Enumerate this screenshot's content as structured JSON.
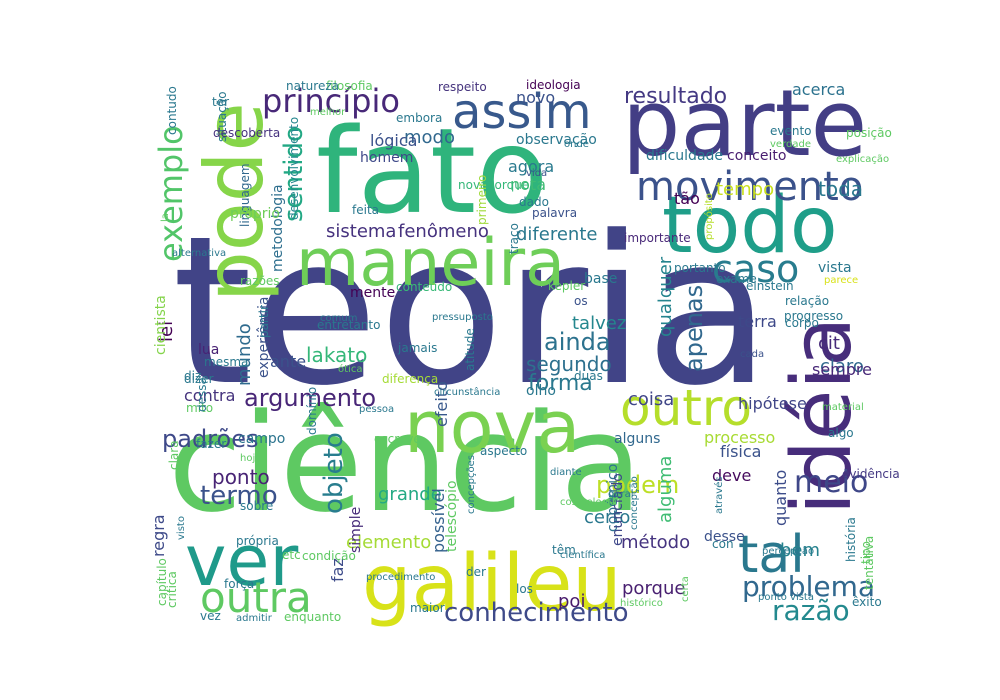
{
  "wordcloud": {
    "words": [
      {
        "text": "teoria",
        "color": "#414487"
      },
      {
        "text": "ciência",
        "color": "#5ec962"
      },
      {
        "text": "fato",
        "color": "#2fb47c"
      },
      {
        "text": "parte",
        "color": "#433e85"
      },
      {
        "text": "idéia",
        "color": "#472d7b"
      },
      {
        "text": "galileu",
        "color": "#d8e219"
      },
      {
        "text": "nova",
        "color": "#7ad151"
      },
      {
        "text": "todo",
        "color": "#1f9e89"
      },
      {
        "text": "maneira",
        "color": "#6ece58"
      },
      {
        "text": "pode",
        "color": "#86d549"
      },
      {
        "text": "ver",
        "color": "#1f9a8a"
      },
      {
        "text": "assim",
        "color": "#38598c"
      },
      {
        "text": "movimento",
        "color": "#3b528b"
      },
      {
        "text": "outro",
        "color": "#b5de2b"
      },
      {
        "text": "outra",
        "color": "#5ec962"
      },
      {
        "text": "caso",
        "color": "#287c8e"
      },
      {
        "text": "exemplo",
        "color": "#52c569"
      },
      {
        "text": "tal",
        "color": "#2a788e"
      },
      {
        "text": "princípio",
        "color": "#482878"
      },
      {
        "text": "conhecimento",
        "color": "#3e4a89"
      },
      {
        "text": "problema",
        "color": "#31688e"
      },
      {
        "text": "argumento",
        "color": "#482677"
      },
      {
        "text": "termo",
        "color": "#3b528b"
      },
      {
        "text": "padrões",
        "color": "#3e4989"
      },
      {
        "text": "objeto",
        "color": "#287d8e"
      },
      {
        "text": "razão",
        "color": "#23898e"
      },
      {
        "text": "sentido",
        "color": "#22a884"
      },
      {
        "text": "resultado",
        "color": "#443983"
      },
      {
        "text": "ainda",
        "color": "#2c728e"
      },
      {
        "text": "apenas",
        "color": "#31688e"
      },
      {
        "text": "podem",
        "color": "#bddf26"
      },
      {
        "text": "meio",
        "color": "#3f4788"
      },
      {
        "text": "forma",
        "color": "#2a788e"
      },
      {
        "text": "tempo",
        "color": "#cae11f"
      },
      {
        "text": "segundo",
        "color": "#2d708e"
      },
      {
        "text": "lakato",
        "color": "#35b779"
      },
      {
        "text": "talvez",
        "color": "#24878e"
      },
      {
        "text": "elemento",
        "color": "#a5db36"
      },
      {
        "text": "qualquer",
        "color": "#25848e"
      },
      {
        "text": "método",
        "color": "#463480"
      },
      {
        "text": "porque",
        "color": "#481f70"
      },
      {
        "text": "modo",
        "color": "#31688e"
      },
      {
        "text": "toda",
        "color": "#2a788e"
      },
      {
        "text": "diferente",
        "color": "#2a788e"
      },
      {
        "text": "sistema",
        "color": "#46327e"
      },
      {
        "text": "fenômeno",
        "color": "#46327e"
      },
      {
        "text": "regra",
        "color": "#3e4a89"
      },
      {
        "text": "ponto",
        "color": "#482475"
      },
      {
        "text": "coisa",
        "color": "#404688"
      },
      {
        "text": "grande",
        "color": "#23a983"
      },
      {
        "text": "alguma",
        "color": "#3fbc73"
      },
      {
        "text": "certo",
        "color": "#2a788e"
      },
      {
        "text": "processo",
        "color": "#a8db34"
      },
      {
        "text": "quanto",
        "color": "#3d4d8a"
      },
      {
        "text": "mundo",
        "color": "#2f6b8e"
      },
      {
        "text": "terra",
        "color": "#3e4989"
      },
      {
        "text": "cit",
        "color": "#472a7a"
      },
      {
        "text": "claro",
        "color": "#31688e"
      },
      {
        "text": "sempre",
        "color": "#482878"
      },
      {
        "text": "novo",
        "color": "#3b528b"
      },
      {
        "text": "acerca",
        "color": "#2c728e"
      },
      {
        "text": "hipótese",
        "color": "#404688"
      },
      {
        "text": "física",
        "color": "#3b528b"
      },
      {
        "text": "deve",
        "color": "#460a5d"
      },
      {
        "text": "bem",
        "color": "#26828e"
      },
      {
        "text": "lei",
        "color": "#440154"
      },
      {
        "text": "contra",
        "color": "#45337d"
      },
      {
        "text": "ante",
        "color": "#3b528b"
      },
      {
        "text": "nota",
        "color": "#3fbc73"
      },
      {
        "text": "agora",
        "color": "#297a8e"
      },
      {
        "text": "lógica",
        "color": "#3b528b"
      },
      {
        "text": "tão",
        "color": "#440154"
      },
      {
        "text": "observação",
        "color": "#2a788e"
      },
      {
        "text": "dificuldade",
        "color": "#2a788e"
      },
      {
        "text": "conceito",
        "color": "#481d6f"
      },
      {
        "text": "telescópio",
        "color": "#5ec962"
      },
      {
        "text": "possível",
        "color": "#34618d"
      },
      {
        "text": "copérnico",
        "color": "#2c728e"
      },
      {
        "text": "simple",
        "color": "#472c7a"
      },
      {
        "text": "faz",
        "color": "#3e4c8a"
      },
      {
        "text": "poi",
        "color": "#481a6c"
      },
      {
        "text": "enunciado",
        "color": "#3f4889"
      },
      {
        "text": "desse",
        "color": "#3b528b"
      },
      {
        "text": "campo",
        "color": "#2b748e"
      },
      {
        "text": "efeito",
        "color": "#38588c"
      },
      {
        "text": "alguns",
        "color": "#31688e"
      },
      {
        "text": "cientista",
        "color": "#84d44b"
      },
      {
        "text": "experiência",
        "color": "#3b528b"
      },
      {
        "text": "lua",
        "color": "#482173"
      },
      {
        "text": "mente",
        "color": "#440154"
      },
      {
        "text": "conteúdo",
        "color": "#38b977"
      },
      {
        "text": "metodologia",
        "color": "#2e6f8e"
      },
      {
        "text": "desenvolvimento",
        "color": "#24868e"
      },
      {
        "text": "linguagem",
        "color": "#31688e"
      },
      {
        "text": "próprio",
        "color": "#6ece58"
      },
      {
        "text": "situação",
        "color": "#2a788e"
      },
      {
        "text": "descoberta",
        "color": "#46327e"
      },
      {
        "text": "respeito",
        "color": "#45337d"
      },
      {
        "text": "ideologia",
        "color": "#440154"
      },
      {
        "text": "homem",
        "color": "#3e4989"
      },
      {
        "text": "embora",
        "color": "#2a788e"
      },
      {
        "text": "nova iorque",
        "color": "#35b779"
      },
      {
        "text": "primeiro",
        "color": "#9fda3a"
      },
      {
        "text": "vida",
        "color": "#3b528b"
      },
      {
        "text": "dado",
        "color": "#2a788e"
      },
      {
        "text": "palavra",
        "color": "#3b528b"
      },
      {
        "text": "traço",
        "color": "#2a788e"
      },
      {
        "text": "propósito",
        "color": "#b5de2b"
      },
      {
        "text": "importante",
        "color": "#482878"
      },
      {
        "text": "portanto",
        "color": "#2a788e"
      },
      {
        "text": "exame",
        "color": "#2a788e"
      },
      {
        "text": "vista",
        "color": "#2a788e"
      },
      {
        "text": "parece",
        "color": "#d8e219"
      },
      {
        "text": "einstein",
        "color": "#2a788e"
      },
      {
        "text": "relação",
        "color": "#2a788e"
      },
      {
        "text": "corpo",
        "color": "#2a788e"
      },
      {
        "text": "progresso",
        "color": "#2a788e"
      },
      {
        "text": "cada",
        "color": "#3b528b"
      },
      {
        "text": "algo",
        "color": "#2a788e"
      },
      {
        "text": "evidência",
        "color": "#443983"
      },
      {
        "text": "tipo",
        "color": "#5ec962"
      },
      {
        "text": "história",
        "color": "#2a788e"
      },
      {
        "text": "tentativa",
        "color": "#5ec962"
      },
      {
        "text": "percepção",
        "color": "#2a788e"
      },
      {
        "text": "êxito",
        "color": "#2a788e"
      },
      {
        "text": "os",
        "color": "#3b528b"
      },
      {
        "text": "base",
        "color": "#2a788e"
      },
      {
        "text": "kepler",
        "color": "#5ec962"
      },
      {
        "text": "duas",
        "color": "#2a788e"
      },
      {
        "text": "olho",
        "color": "#2a788e"
      },
      {
        "text": "circunstância",
        "color": "#2a788e"
      },
      {
        "text": "diferença",
        "color": "#a5db36"
      },
      {
        "text": "ótica",
        "color": "#5ec962"
      },
      {
        "text": "jamais",
        "color": "#2a788e"
      },
      {
        "text": "atitude",
        "color": "#2a788e"
      },
      {
        "text": "pressuposto",
        "color": "#2a788e"
      },
      {
        "text": "evento",
        "color": "#2a788e"
      },
      {
        "text": "verdade",
        "color": "#5ec962"
      },
      {
        "text": "explicação",
        "color": "#5ec962"
      },
      {
        "text": "posição",
        "color": "#5ec962"
      },
      {
        "text": "onde",
        "color": "#2a788e"
      },
      {
        "text": "filosofia",
        "color": "#5ec962"
      },
      {
        "text": "natureza",
        "color": "#2a788e"
      },
      {
        "text": "melhor",
        "color": "#5ec962"
      },
      {
        "text": "contudo",
        "color": "#2a788e"
      },
      {
        "text": "ter",
        "color": "#2a788e"
      },
      {
        "text": "la",
        "color": "#5ec962"
      },
      {
        "text": "alternativa",
        "color": "#2a788e"
      },
      {
        "text": "razões",
        "color": "#5ec962"
      },
      {
        "text": "partir",
        "color": "#2a788e"
      },
      {
        "text": "entretanto",
        "color": "#2a788e"
      },
      {
        "text": "comum",
        "color": "#2a788e"
      },
      {
        "text": "mesma",
        "color": "#2a788e"
      },
      {
        "text": "diz",
        "color": "#2a788e"
      },
      {
        "text": "dizer",
        "color": "#2a788e"
      },
      {
        "text": "mito",
        "color": "#5ec962"
      },
      {
        "text": "dessa",
        "color": "#2a788e"
      },
      {
        "text": "domínio",
        "color": "#2a788e"
      },
      {
        "text": "pessoa",
        "color": "#2a788e"
      },
      {
        "text": "escreve",
        "color": "#5ec962"
      },
      {
        "text": "fazer",
        "color": "#2a788e"
      },
      {
        "text": "hoje",
        "color": "#5ec962"
      },
      {
        "text": "clara",
        "color": "#5ec962"
      },
      {
        "text": "sobre",
        "color": "#2a788e"
      },
      {
        "text": "aspecto",
        "color": "#2a788e"
      },
      {
        "text": "diante",
        "color": "#2a788e"
      },
      {
        "text": "concepção",
        "color": "#2a788e"
      },
      {
        "text": "concepções",
        "color": "#2a788e"
      },
      {
        "text": "cosmologia",
        "color": "#5ec962"
      },
      {
        "text": "geral",
        "color": "#2a788e"
      },
      {
        "text": "através",
        "color": "#2a788e"
      },
      {
        "text": "material",
        "color": "#5ec962"
      },
      {
        "text": "visto",
        "color": "#2a788e"
      },
      {
        "text": "etc",
        "color": "#5ec962"
      },
      {
        "text": "condição",
        "color": "#5ec962"
      },
      {
        "text": "própria",
        "color": "#2a788e"
      },
      {
        "text": "força",
        "color": "#2a788e"
      },
      {
        "text": "crítica",
        "color": "#5ec962"
      },
      {
        "text": "capítulo",
        "color": "#5ec962"
      },
      {
        "text": "vez",
        "color": "#2a788e"
      },
      {
        "text": "admitir",
        "color": "#2a788e"
      },
      {
        "text": "enquanto",
        "color": "#5ec962"
      },
      {
        "text": "maior",
        "color": "#2a788e"
      },
      {
        "text": "los",
        "color": "#2a788e"
      },
      {
        "text": "der",
        "color": "#2a788e"
      },
      {
        "text": "têm",
        "color": "#2a788e"
      },
      {
        "text": "científica",
        "color": "#2a788e"
      },
      {
        "text": "histórico",
        "color": "#5ec962"
      },
      {
        "text": "certa",
        "color": "#5ec962"
      },
      {
        "text": "ponto vista",
        "color": "#2a788e"
      },
      {
        "text": "procedimento",
        "color": "#2a788e"
      },
      {
        "text": "feita",
        "color": "#2a788e"
      },
      {
        "text": "con",
        "color": "#2a788e"
      },
      {
        "text": "desse",
        "color": "#2a788e"
      }
    ]
  }
}
